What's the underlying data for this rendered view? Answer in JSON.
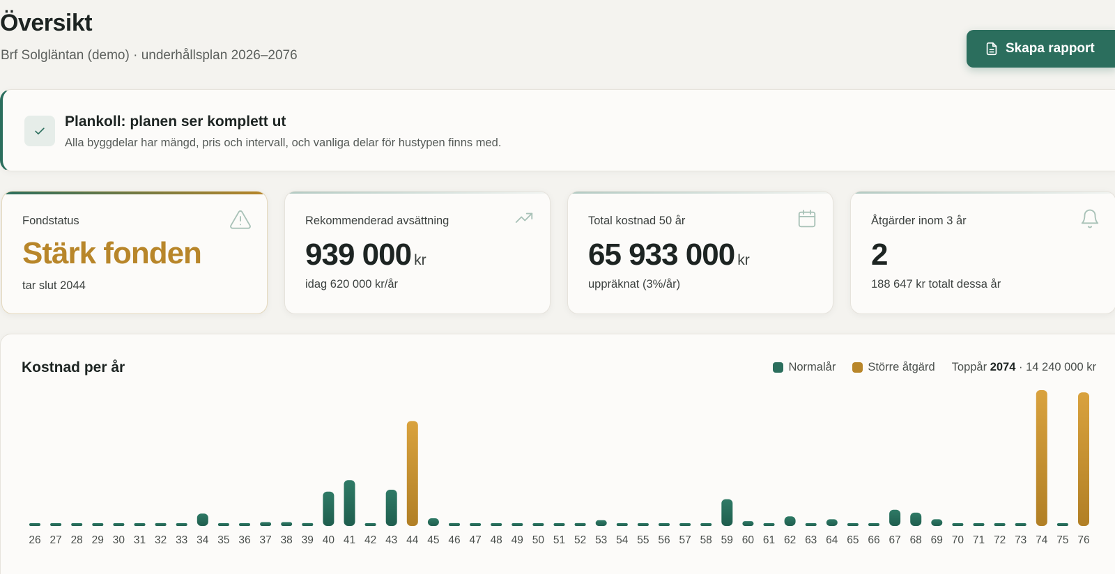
{
  "header": {
    "title": "Översikt",
    "subtitle": "Brf Solgläntan (demo) · underhållsplan 2026–2076",
    "report_button": "Skapa rapport"
  },
  "plan_check": {
    "title": "Plankoll: planen ser komplett ut",
    "text": "Alla byggdelar har mängd, pris och intervall, och vanliga delar för hustypen finns med."
  },
  "stats": [
    {
      "label": "Fondstatus",
      "value": "Stärk fonden",
      "unit": "",
      "sub": "tar slut 2044",
      "icon": "warning-icon"
    },
    {
      "label": "Rekommenderad avsättning",
      "value": "939 000",
      "unit": "kr",
      "sub": "idag 620 000 kr/år",
      "icon": "trending-up-icon"
    },
    {
      "label": "Total kostnad 50 år",
      "value": "65 933 000",
      "unit": "kr",
      "sub": "uppräknat (3%/år)",
      "icon": "calendar-icon"
    },
    {
      "label": "Åtgärder inom 3 år",
      "value": "2",
      "unit": "",
      "sub": "188 647 kr totalt dessa år",
      "icon": "bell-icon"
    }
  ],
  "chart": {
    "title": "Kostnad per år",
    "legend": {
      "normal": "Normalår",
      "major": "Större åtgärd"
    },
    "peak_prefix": "Toppår",
    "peak_year": "2074",
    "peak_suffix": "· 14 240 000 kr"
  },
  "colors": {
    "accent": "#2b6e5d",
    "gold": "#b8862a",
    "background": "#f4f3ef"
  },
  "chart_data": {
    "type": "bar",
    "categories": [
      "26",
      "27",
      "28",
      "29",
      "30",
      "31",
      "32",
      "33",
      "34",
      "35",
      "36",
      "37",
      "38",
      "39",
      "40",
      "41",
      "42",
      "43",
      "44",
      "45",
      "46",
      "47",
      "48",
      "49",
      "50",
      "51",
      "52",
      "53",
      "54",
      "55",
      "56",
      "57",
      "58",
      "59",
      "60",
      "61",
      "62",
      "63",
      "64",
      "65",
      "66",
      "67",
      "68",
      "69",
      "70",
      "71",
      "72",
      "73",
      "74",
      "75",
      "76"
    ],
    "values": [
      200000,
      200000,
      200000,
      200000,
      200000,
      200000,
      300000,
      200000,
      1300000,
      200000,
      200000,
      400000,
      400000,
      300000,
      3600000,
      4800000,
      200000,
      3800000,
      11000000,
      800000,
      300000,
      200000,
      200000,
      200000,
      200000,
      200000,
      300000,
      600000,
      200000,
      200000,
      200000,
      200000,
      200000,
      2800000,
      500000,
      200000,
      1000000,
      200000,
      700000,
      200000,
      200000,
      1700000,
      1400000,
      700000,
      200000,
      200000,
      200000,
      200000,
      14240000,
      200000,
      14000000
    ],
    "kind": [
      "normal",
      "normal",
      "normal",
      "normal",
      "normal",
      "normal",
      "normal",
      "normal",
      "normal",
      "normal",
      "normal",
      "normal",
      "normal",
      "normal",
      "normal",
      "normal",
      "normal",
      "normal",
      "major",
      "normal",
      "normal",
      "normal",
      "normal",
      "normal",
      "normal",
      "normal",
      "normal",
      "normal",
      "normal",
      "normal",
      "normal",
      "normal",
      "normal",
      "normal",
      "normal",
      "normal",
      "normal",
      "normal",
      "normal",
      "normal",
      "normal",
      "normal",
      "normal",
      "normal",
      "normal",
      "normal",
      "normal",
      "normal",
      "major",
      "normal",
      "major"
    ],
    "ylim": [
      0,
      14240000
    ],
    "grid": false,
    "legend_position": "top-right"
  }
}
